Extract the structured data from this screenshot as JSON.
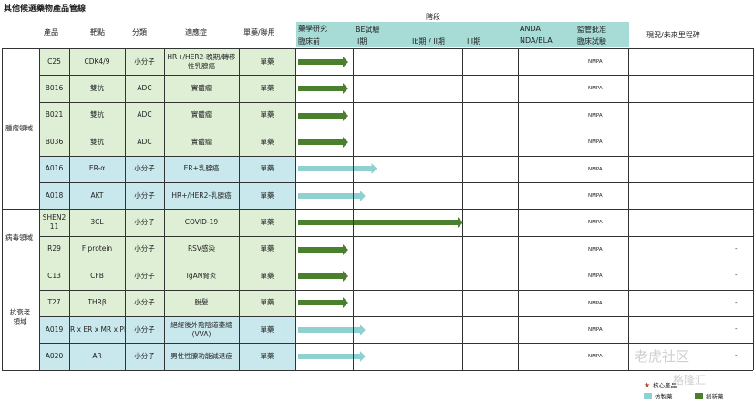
{
  "title": "其他候選藥物產品管線",
  "header": {
    "stage": "階段",
    "product": "產品",
    "target": "靶點",
    "category": "分類",
    "indication": "適應症",
    "mono_combo": "單藥/聯用",
    "phases": [
      {
        "top": "藥學研究",
        "bottom": "臨床前"
      },
      {
        "top": "BE試驗",
        "bottom": "I期"
      },
      {
        "top": "",
        "bottom": "Ib期 / II期"
      },
      {
        "top": "",
        "bottom": "III期"
      },
      {
        "top": "ANDA",
        "bottom": "NDA/BLA"
      },
      {
        "top": "監管批准",
        "bottom": "臨床試驗"
      }
    ],
    "milestone": "現況/未來里程碑"
  },
  "areas": [
    {
      "label": "腫瘤領域"
    },
    {
      "label": "病毒領域"
    },
    {
      "label": "抗衰老領域"
    }
  ],
  "rows": [
    {
      "product": "C25",
      "target": "CDK4/9",
      "category": "小分子",
      "indication": "HR+/HER2-晚期/轉移性乳腺癌",
      "mode": "單藥",
      "progress": 1,
      "kind": "green",
      "approval": "NMPA",
      "milestone": ""
    },
    {
      "product": "B016",
      "target": "雙抗",
      "category": "ADC",
      "indication": "實體瘤",
      "mode": "單藥",
      "progress": 1,
      "kind": "green",
      "approval": "NMPA",
      "milestone": ""
    },
    {
      "product": "B021",
      "target": "雙抗",
      "category": "ADC",
      "indication": "實體瘤",
      "mode": "單藥",
      "progress": 1,
      "kind": "green",
      "approval": "NMPA",
      "milestone": ""
    },
    {
      "product": "B036",
      "target": "雙抗",
      "category": "ADC",
      "indication": "實體瘤",
      "mode": "單藥",
      "progress": 1,
      "kind": "green",
      "approval": "NMPA",
      "milestone": ""
    },
    {
      "product": "A016",
      "target": "ER-α",
      "category": "小分子",
      "indication": "ER+乳腺癌",
      "mode": "單藥",
      "progress": 1.5,
      "kind": "blue",
      "approval": "NMPA",
      "milestone": ""
    },
    {
      "product": "A018",
      "target": "AKT",
      "category": "小分子",
      "indication": "HR+/HER2-乳腺癌",
      "mode": "單藥",
      "progress": 1.3,
      "kind": "blue",
      "approval": "NMPA",
      "milestone": ""
    },
    {
      "product": "SHEN211",
      "target": "3CL",
      "category": "小分子",
      "indication": "COVID-19",
      "mode": "單藥",
      "progress": 3,
      "kind": "green",
      "approval": "NMPA",
      "milestone": ""
    },
    {
      "product": "R29",
      "target": "F protein",
      "category": "小分子",
      "indication": "RSV感染",
      "mode": "單藥",
      "progress": 1,
      "kind": "green",
      "approval": "NMPA",
      "milestone": "-"
    },
    {
      "product": "C13",
      "target": "CFB",
      "category": "小分子",
      "indication": "IgAN腎炎",
      "mode": "單藥",
      "progress": 1,
      "kind": "green",
      "approval": "NMPA",
      "milestone": "-"
    },
    {
      "product": "T27",
      "target": "THRβ",
      "category": "小分子",
      "indication": "脫髮",
      "mode": "單藥",
      "progress": 1,
      "kind": "green",
      "approval": "NMPA",
      "milestone": "-"
    },
    {
      "product": "A019",
      "target": "AR x ER x MR x PR",
      "category": "小分子",
      "indication": "絕經後外陰陰道萎縮 (VVA)",
      "mode": "單藥",
      "progress": 1.3,
      "kind": "blue",
      "approval": "NMPA",
      "milestone": "-"
    },
    {
      "product": "A020",
      "target": "AR",
      "category": "小分子",
      "indication": "男性性腺功能減退症",
      "mode": "單藥",
      "progress": 1.3,
      "kind": "blue",
      "approval": "NMPA",
      "milestone": "-"
    }
  ],
  "legend": {
    "core": "核心產品",
    "generic": "仿製藥",
    "innovative": "創新藥"
  },
  "colors": {
    "green_fill": "#dfefd6",
    "blue_fill": "#c9e8ed",
    "green_arrow": "#4a7f2e",
    "blue_arrow": "#8fd0d0",
    "teal_header": "#a7dbd6"
  },
  "watermark": "老虎社区",
  "watermark2": "格隆汇"
}
